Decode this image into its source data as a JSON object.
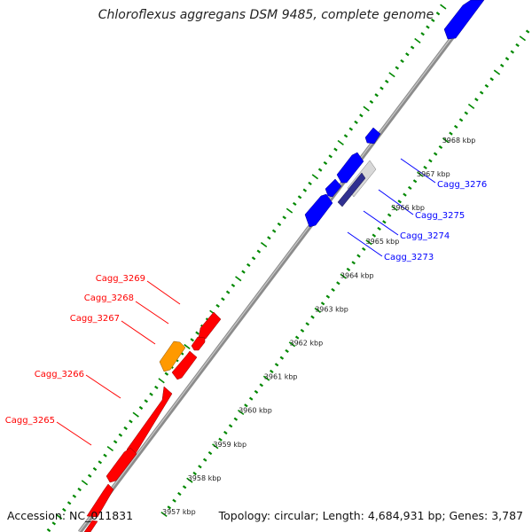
{
  "title": "Chloroflexus aggregans DSM 9485, complete genome",
  "footer": {
    "accession": "Accession: NC_011831",
    "summary": "Topology: circular; Length: 4,684,931 bp; Genes: 3,787"
  },
  "colors": {
    "forward_gene": "#0000ff",
    "forward_gene_alt": "#30307a",
    "reverse_gene": "#ff0000",
    "highlight_gene": "#ff9900",
    "backbone": "#8c8c8c",
    "tick": "#008800"
  },
  "scale": {
    "unit": "kbp",
    "labels": [
      "3957 kbp",
      "3958 kbp",
      "3959 kbp",
      "3960 kbp",
      "3961 kbp",
      "3962 kbp",
      "3963 kbp",
      "3964 kbp",
      "3965 kbp",
      "3966 kbp",
      "3967 kbp",
      "3968 kbp"
    ]
  },
  "gene_labels": {
    "forward": [
      "Cagg_3276",
      "Cagg_3275",
      "Cagg_3274",
      "Cagg_3273"
    ],
    "reverse": [
      "Cagg_3269",
      "Cagg_3268",
      "Cagg_3267",
      "Cagg_3266",
      "Cagg_3265"
    ]
  }
}
